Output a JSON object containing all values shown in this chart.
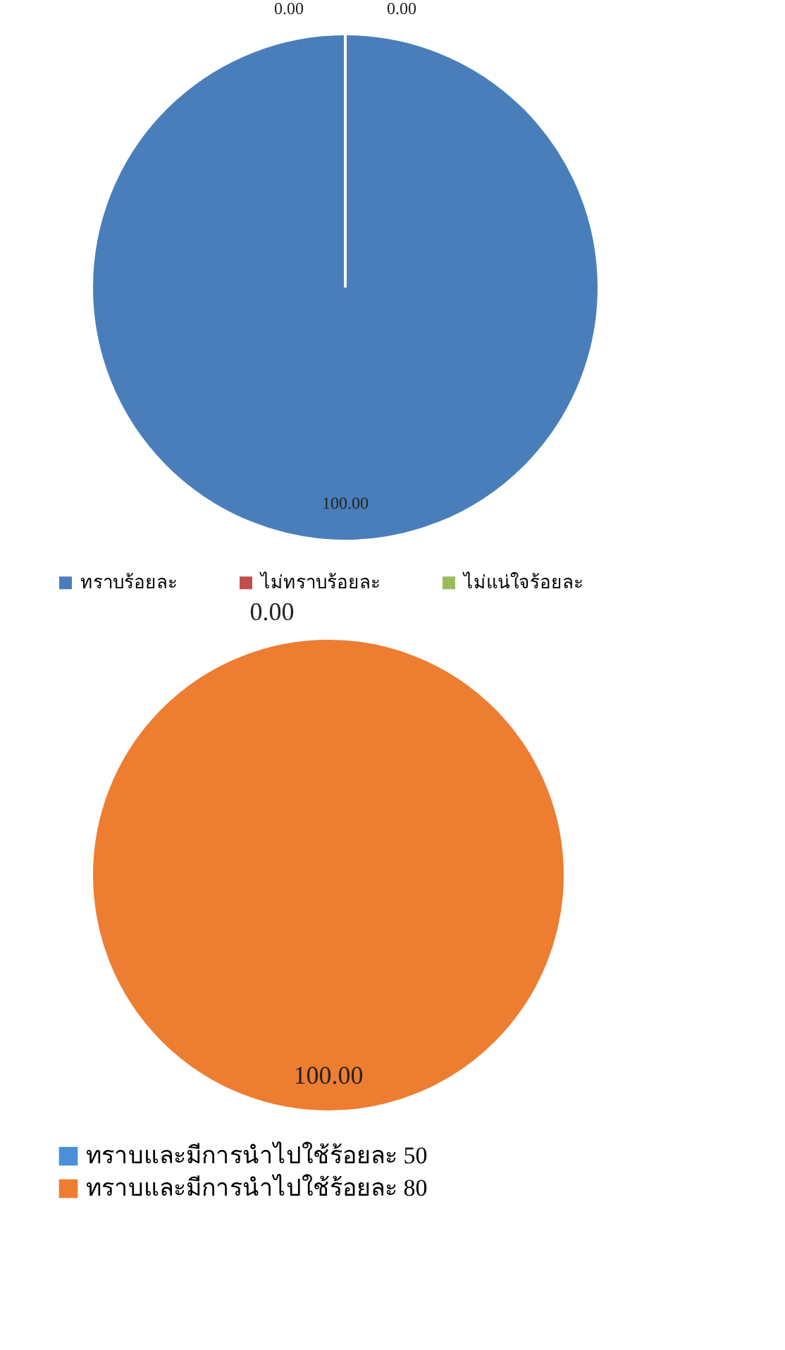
{
  "chart_data": [
    {
      "type": "pie",
      "categories": [
        "ทราบร้อยละ",
        "ไม่ทราบร้อยละ",
        "ไม่แน่ใจร้อยละ"
      ],
      "values": [
        100,
        0,
        0
      ],
      "colors": [
        "#4a7ebb",
        "#c0504d",
        "#9bbb59"
      ],
      "value_labels": [
        "100.00",
        "0.00",
        "0.00"
      ],
      "legend": "bottom"
    },
    {
      "type": "pie",
      "categories": [
        "ทราบและมีการนำไปใช้ร้อยละ 50",
        "ทราบและมีการนำไปใช้ร้อยละ 80"
      ],
      "values": [
        0,
        100
      ],
      "colors": [
        "#4a90d9",
        "#ed7d31"
      ],
      "value_labels": [
        "0.00",
        "100.00"
      ],
      "legend": "bottom"
    }
  ]
}
